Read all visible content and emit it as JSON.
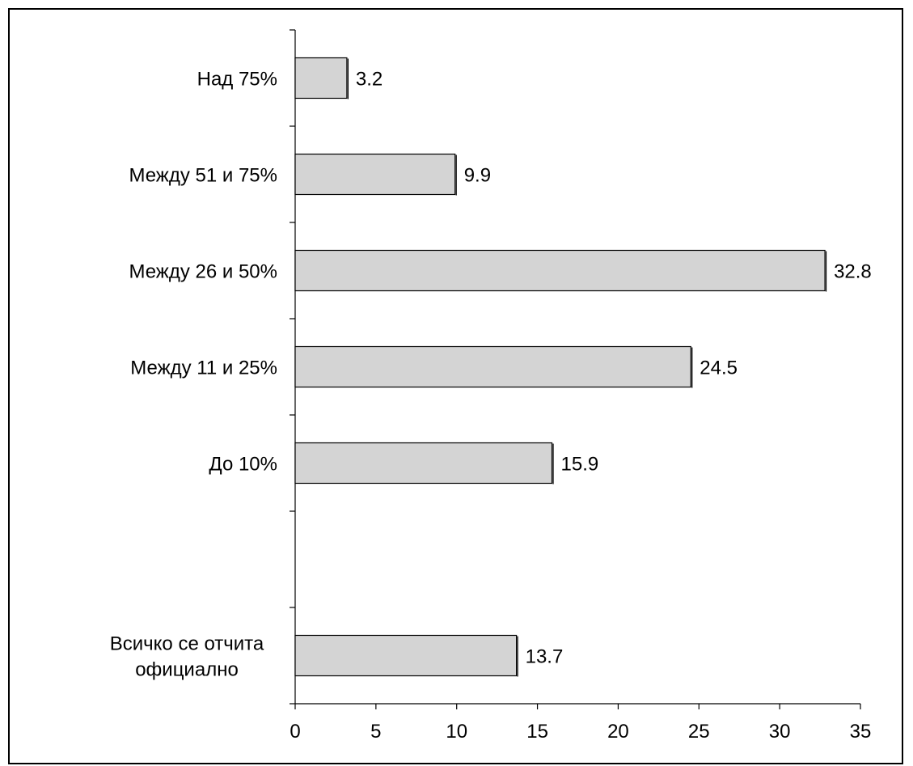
{
  "chart_data": {
    "type": "bar",
    "orientation": "horizontal",
    "title": "",
    "xlabel": "",
    "ylabel": "",
    "xlim": [
      0,
      35
    ],
    "x_ticks": [
      0,
      5,
      10,
      15,
      20,
      25,
      30,
      35
    ],
    "grid": false,
    "legend": "none",
    "bar_color": "#d4d4d4",
    "bar_edge_color": "#000000",
    "categories": [
      {
        "label_lines": [
          "Над 75%"
        ],
        "value": 3.2,
        "value_label": "3.2"
      },
      {
        "label_lines": [
          "Между 51 и 75%"
        ],
        "value": 9.9,
        "value_label": "9.9"
      },
      {
        "label_lines": [
          "Между 26 и 50%"
        ],
        "value": 32.8,
        "value_label": "32.8"
      },
      {
        "label_lines": [
          "Между 11 и 25%"
        ],
        "value": 24.5,
        "value_label": "24.5"
      },
      {
        "label_lines": [
          "До 10%"
        ],
        "value": 15.9,
        "value_label": "15.9"
      },
      {
        "label_lines": [],
        "value": null,
        "value_label": ""
      },
      {
        "label_lines": [
          "Всичко се отчита",
          "официално"
        ],
        "value": 13.7,
        "value_label": "13.7"
      }
    ]
  }
}
